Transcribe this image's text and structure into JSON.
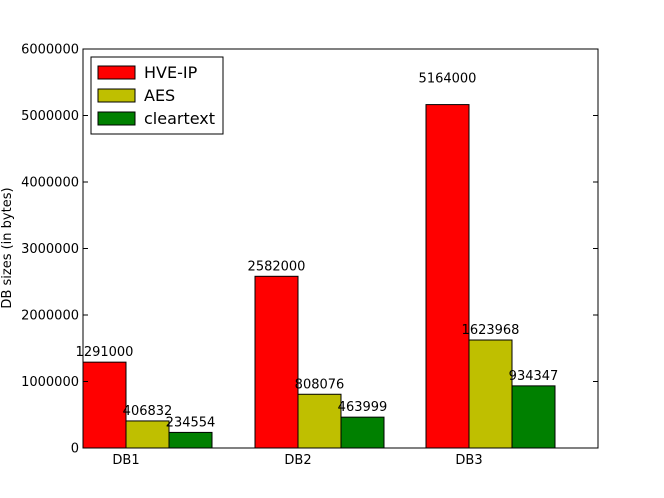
{
  "chart_data": {
    "type": "bar",
    "title": "",
    "xlabel": "",
    "ylabel": "DB sizes (in bytes)",
    "ylim": [
      0,
      6000000
    ],
    "yticks": [
      0,
      1000000,
      2000000,
      3000000,
      4000000,
      5000000,
      6000000
    ],
    "categories": [
      "DB1",
      "DB2",
      "DB3"
    ],
    "series": [
      {
        "name": "HVE-IP",
        "color": "#ff0000",
        "values": [
          1291000,
          2582000,
          5164000
        ]
      },
      {
        "name": "AES",
        "color": "#bfbf00",
        "values": [
          406832,
          808076,
          1623968
        ]
      },
      {
        "name": "cleartext",
        "color": "#008000",
        "values": [
          234554,
          463999,
          934347
        ]
      }
    ],
    "grid": false,
    "legend_position": "top-left"
  }
}
